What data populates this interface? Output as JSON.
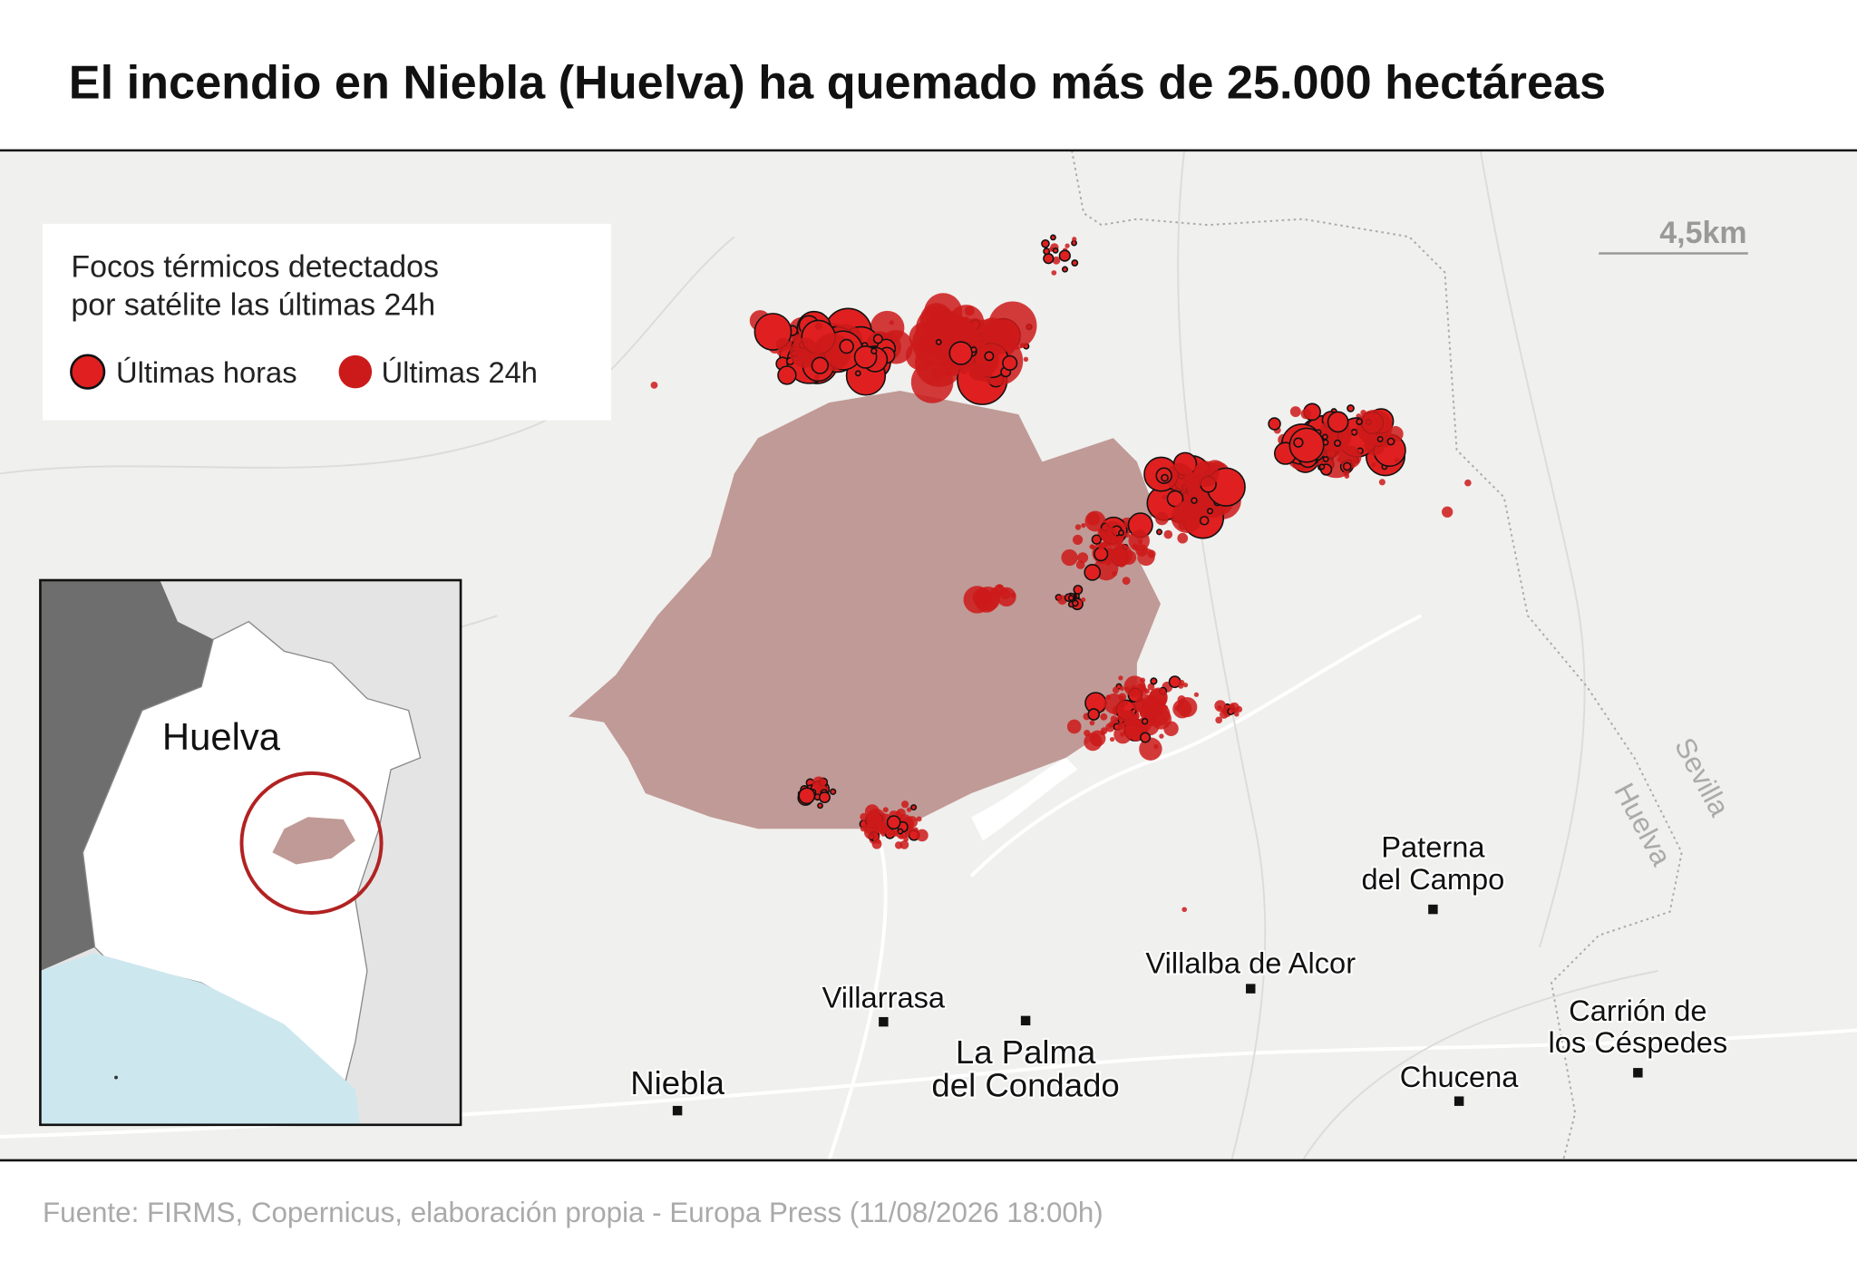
{
  "title": "El incendio en Niebla (Huelva) ha quemado más de 25.000 hectáreas",
  "legend": {
    "title_lines": [
      "Focos térmicos detectados",
      "por satélite las últimas 24h"
    ],
    "items": [
      "Últimas horas",
      "Últimas 24h"
    ]
  },
  "scale": "4,5km",
  "inset": {
    "label": "Huelva"
  },
  "regions": [
    "Sevilla",
    "Huelva"
  ],
  "towns": [
    {
      "lines": [
        "Paterna",
        "del Campo"
      ]
    },
    {
      "lines": [
        "Villalba de Alcor"
      ]
    },
    {
      "lines": [
        "Villarrasa"
      ]
    },
    {
      "lines": [
        "La Palma",
        "del Condado"
      ]
    },
    {
      "lines": [
        "Niebla"
      ]
    },
    {
      "lines": [
        "Chucena"
      ]
    },
    {
      "lines": [
        "Carrión de",
        "los Céspedes"
      ]
    }
  ],
  "source": "Fuente: FIRMS, Copernicus, elaboración propia - Europa Press (11/08/2026 18:00h)"
}
